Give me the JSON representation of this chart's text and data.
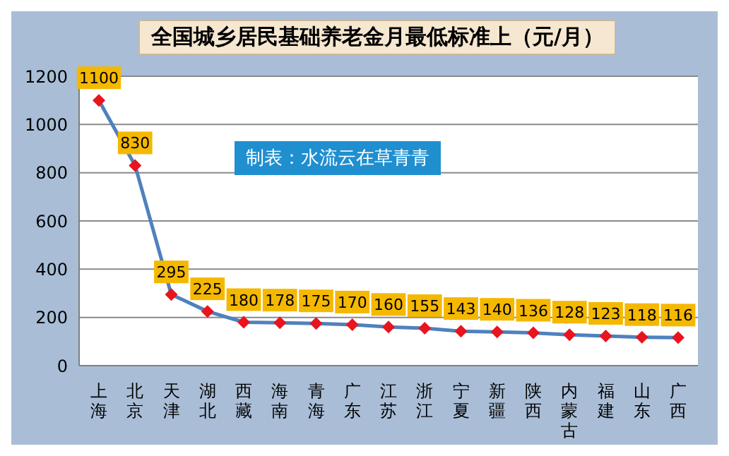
{
  "chart_data": {
    "type": "line",
    "title": "全国城乡居民基础养老金月最低标准上（元/月）",
    "annotations": [
      "制表：水流云在草青青"
    ],
    "categories": [
      "上海",
      "北京",
      "天津",
      "湖北",
      "西藏",
      "海南",
      "青海",
      "广东",
      "江苏",
      "浙江",
      "宁夏",
      "新疆",
      "陕西",
      "内蒙古",
      "福建",
      "山东",
      "广西"
    ],
    "series": [
      {
        "color": "#4f81bd",
        "values": [
          1100,
          830,
          295,
          225,
          180,
          178,
          175,
          170,
          160,
          155,
          143,
          140,
          136,
          128,
          123,
          118,
          116
        ]
      }
    ],
    "ylim": [
      0,
      1200
    ],
    "yticks": [
      0,
      200,
      400,
      600,
      800,
      1000,
      1200
    ],
    "grid": "y",
    "marker": "diamond",
    "line_style": "solid",
    "data_labels": true
  }
}
